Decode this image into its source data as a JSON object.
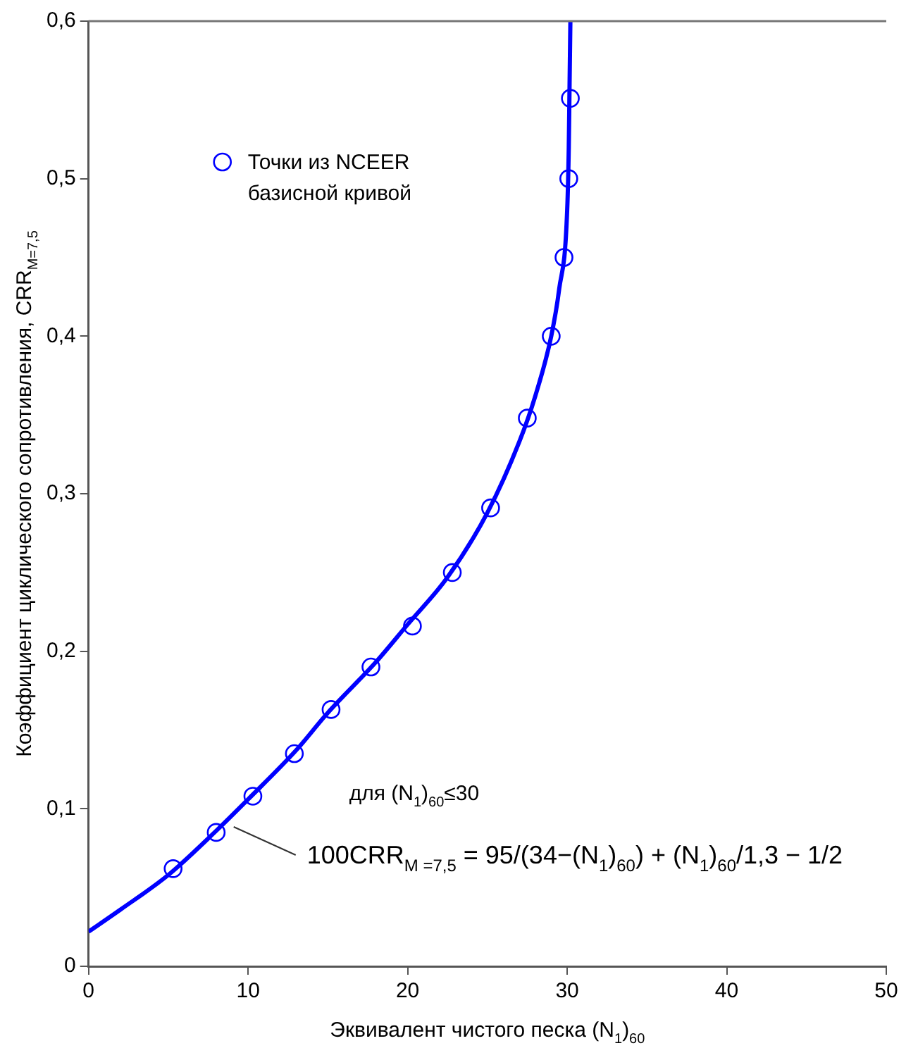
{
  "chart_data": {
    "type": "scatter",
    "xlabel": "Эквивалент чистого песка (N$_{1}$)$_{60}$",
    "ylabel": "Коэффициент циклического сопротивления, CRR$_{M=7,5}$",
    "xlim": [
      0,
      50
    ],
    "xticks": [
      0,
      10,
      20,
      30,
      40,
      50
    ],
    "ylim": [
      0,
      0.6
    ],
    "yticks": [
      0,
      {
        "value": 0.1,
        "label": "0,1"
      },
      {
        "value": 0.2,
        "label": "0,2"
      },
      {
        "value": 0.3,
        "label": "0,3"
      },
      {
        "value": 0.4,
        "label": "0,4"
      },
      {
        "value": 0.5,
        "label": "0,5"
      },
      {
        "value": 0.6,
        "label": "0,6"
      }
    ],
    "grid": false,
    "legend": "top left",
    "series": [
      {
        "name": "Точки из NCEER базисной кривой",
        "marker": "circle",
        "color": "#0000ff",
        "x": [
          5.3,
          8.0,
          10.3,
          12.9,
          15.2,
          17.7,
          20.3,
          22.8,
          25.2,
          27.5,
          29.0,
          29.8,
          30.1,
          30.2
        ],
        "values": [
          0.062,
          0.085,
          0.108,
          0.135,
          0.163,
          0.19,
          0.216,
          0.25,
          0.291,
          0.348,
          0.4,
          0.45,
          0.5,
          0.551
        ]
      },
      {
        "type": "line",
        "marker": "none",
        "line_style": "solid",
        "color": "#0000ff",
        "x": [
          0,
          2,
          5,
          8,
          10,
          13,
          15,
          18,
          20,
          22.5,
          25,
          27,
          28,
          29,
          29.5,
          30,
          30.1,
          30.15,
          30.2
        ],
        "values": [
          0.022,
          0.036,
          0.058,
          0.086,
          0.106,
          0.137,
          0.161,
          0.193,
          0.217,
          0.247,
          0.288,
          0.333,
          0.362,
          0.4,
          0.43,
          0.48,
          0.52,
          0.56,
          0.6
        ]
      }
    ],
    "annotations": [
      "для (N$_{1}$)$_{60}$≤30",
      "100CRR$_{M =7,5}$ = 95/(34−(N$_{1}$)$_{60}$) + (N$_{1}$)$_{60}$/1,3 − 1/2"
    ]
  }
}
